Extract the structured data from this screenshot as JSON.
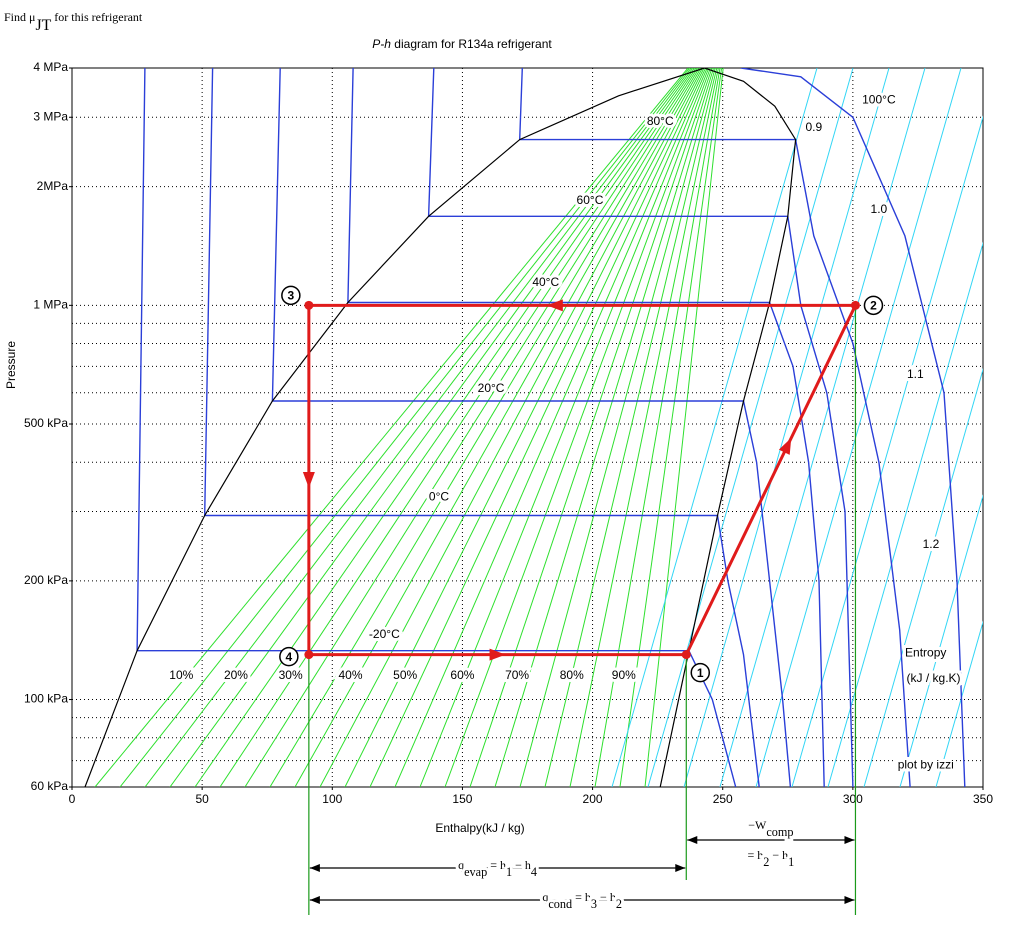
{
  "header": {
    "parts": [
      {
        "t": "Find μ"
      },
      {
        "t": "JT",
        "sub": true
      },
      {
        "t": " for this refrigerant"
      }
    ]
  },
  "chart_data": {
    "type": "line",
    "title_parts": [
      {
        "t": "P-h",
        "italic": true
      },
      {
        "t": " diagram for R134a refrigerant"
      }
    ],
    "x_label": "Enthalpy(kJ / kg)",
    "y_label": "Pressure",
    "xlim": [
      0,
      350
    ],
    "xticks": [
      0,
      50,
      100,
      150,
      200,
      250,
      300,
      350
    ],
    "ylim": [
      60,
      4000
    ],
    "y_log": true,
    "yticks": [
      {
        "value": 60,
        "label": "60 kPa"
      },
      {
        "value": 100,
        "label": "100 kPa"
      },
      {
        "value": 200,
        "label": "200 kPa"
      },
      {
        "value": 500,
        "label": "500 kPa"
      },
      {
        "value": 1000,
        "label": "1 MPa"
      },
      {
        "value": 2000,
        "label": "2MPa"
      },
      {
        "value": 3000,
        "label": "3 MPa"
      },
      {
        "value": 4000,
        "label": "4 MPa"
      }
    ],
    "ygrid_minor": [
      70,
      80,
      90,
      300,
      400,
      600,
      700,
      800,
      900
    ],
    "grid": true,
    "dome": {
      "color": "#000000",
      "x": [
        5,
        25,
        51,
        77,
        106,
        137,
        172,
        210,
        243,
        258,
        270,
        278,
        275,
        268,
        258,
        248,
        237,
        226
      ],
      "y": [
        60,
        133,
        293,
        572,
        1017,
        1682,
        2633,
        3400,
        4000,
        3700,
        3200,
        2633,
        1682,
        1017,
        572,
        293,
        133,
        60
      ]
    },
    "isotherms": [
      {
        "name": "-20°C",
        "color": "#2b3fd8",
        "x": [
          28,
          25,
          237,
          246,
          255
        ],
        "y": [
          4000,
          133,
          133,
          100,
          60
        ],
        "label_at": [
          120,
          146
        ]
      },
      {
        "name": "0°C",
        "color": "#2b3fd8",
        "x": [
          54,
          51,
          248,
          252,
          258,
          264
        ],
        "y": [
          4000,
          293,
          293,
          200,
          130,
          60
        ],
        "label_at": [
          141,
          326
        ]
      },
      {
        "name": "20°C",
        "color": "#2b3fd8",
        "x": [
          80,
          77,
          258,
          263,
          268,
          273,
          276
        ],
        "y": [
          4000,
          572,
          572,
          400,
          200,
          100,
          60
        ],
        "label_at": [
          161,
          614
        ]
      },
      {
        "name": "40°C",
        "color": "#2b3fd8",
        "x": [
          108,
          106,
          268,
          277,
          283,
          287,
          289
        ],
        "y": [
          4000,
          1017,
          1017,
          700,
          400,
          200,
          60
        ],
        "label_at": [
          182,
          1140
        ]
      },
      {
        "name": "60°C",
        "color": "#2b3fd8",
        "x": [
          139,
          137,
          275,
          280,
          290,
          297,
          300
        ],
        "y": [
          4000,
          1682,
          1682,
          1000,
          600,
          300,
          60
        ],
        "label_at": [
          199,
          1843
        ]
      },
      {
        "name": "80°C",
        "color": "#2b3fd8",
        "x": [
          173,
          172,
          278,
          285,
          300,
          310,
          318,
          322
        ],
        "y": [
          4000,
          2633,
          2633,
          1500,
          800,
          400,
          150,
          60
        ],
        "label_at": [
          226,
          2920
        ]
      },
      {
        "name": "100°C",
        "color": "#2b3fd8",
        "x": [
          257,
          280,
          300,
          320,
          335,
          340,
          343
        ],
        "y": [
          4000,
          3800,
          3000,
          1500,
          600,
          200,
          60
        ],
        "label_at": [
          310,
          3310
        ]
      }
    ],
    "quality_labels": [
      {
        "text": "10%",
        "h": 42,
        "p": 115
      },
      {
        "text": "20%",
        "h": 63,
        "p": 115
      },
      {
        "text": "30%",
        "h": 84,
        "p": 115
      },
      {
        "text": "40%",
        "h": 107,
        "p": 115
      },
      {
        "text": "50%",
        "h": 128,
        "p": 115
      },
      {
        "text": "60%",
        "h": 150,
        "p": 115
      },
      {
        "text": "70%",
        "h": 171,
        "p": 115
      },
      {
        "text": "80%",
        "h": 192,
        "p": 115
      },
      {
        "text": "90%",
        "h": 212,
        "p": 115
      }
    ],
    "entropy_labels": [
      {
        "text": "0.9",
        "h": 285,
        "p": 2820
      },
      {
        "text": "1.0",
        "h": 310,
        "p": 1746
      },
      {
        "text": "1.1",
        "h": 324,
        "p": 666
      },
      {
        "text": "1.2",
        "h": 330,
        "p": 247
      }
    ],
    "annotations": [
      {
        "text": "Entropy",
        "h": 328,
        "p": 131,
        "color": "#000000"
      },
      {
        "text": "(kJ / kg.K)",
        "h": 331,
        "p": 113,
        "color": "#000000"
      },
      {
        "text": "plot by izzi",
        "h": 328,
        "p": 68,
        "color": "#2aa0e8"
      }
    ],
    "cycle_color": "#e01b1b",
    "states": [
      {
        "label": "1",
        "h": 236,
        "p": 130
      },
      {
        "label": "2",
        "h": 301,
        "p": 1000
      },
      {
        "label": "3",
        "h": 91,
        "p": 1000
      },
      {
        "label": "4",
        "h": 91,
        "p": 130
      }
    ],
    "marker_line_color": "#1a9a1a"
  },
  "energy_terms": [
    {
      "lines": [
        [
          {
            "t": "−W"
          },
          {
            "t": "comp",
            "sub": true
          }
        ],
        [
          {
            "t": "= h"
          },
          {
            "t": "2",
            "sub": true
          },
          {
            "t": " − h"
          },
          {
            "t": "1",
            "sub": true
          }
        ]
      ]
    },
    {
      "lines": [
        [
          {
            "t": "q"
          },
          {
            "t": "evap",
            "sub": true
          },
          {
            "t": " = h"
          },
          {
            "t": "1",
            "sub": true
          },
          {
            "t": " − h"
          },
          {
            "t": "4",
            "sub": true
          }
        ]
      ]
    },
    {
      "lines": [
        [
          {
            "t": "q"
          },
          {
            "t": "cond",
            "sub": true
          },
          {
            "t": " = h"
          },
          {
            "t": "3",
            "sub": true
          },
          {
            "t": " − h"
          },
          {
            "t": "2",
            "sub": true
          }
        ]
      ]
    }
  ]
}
